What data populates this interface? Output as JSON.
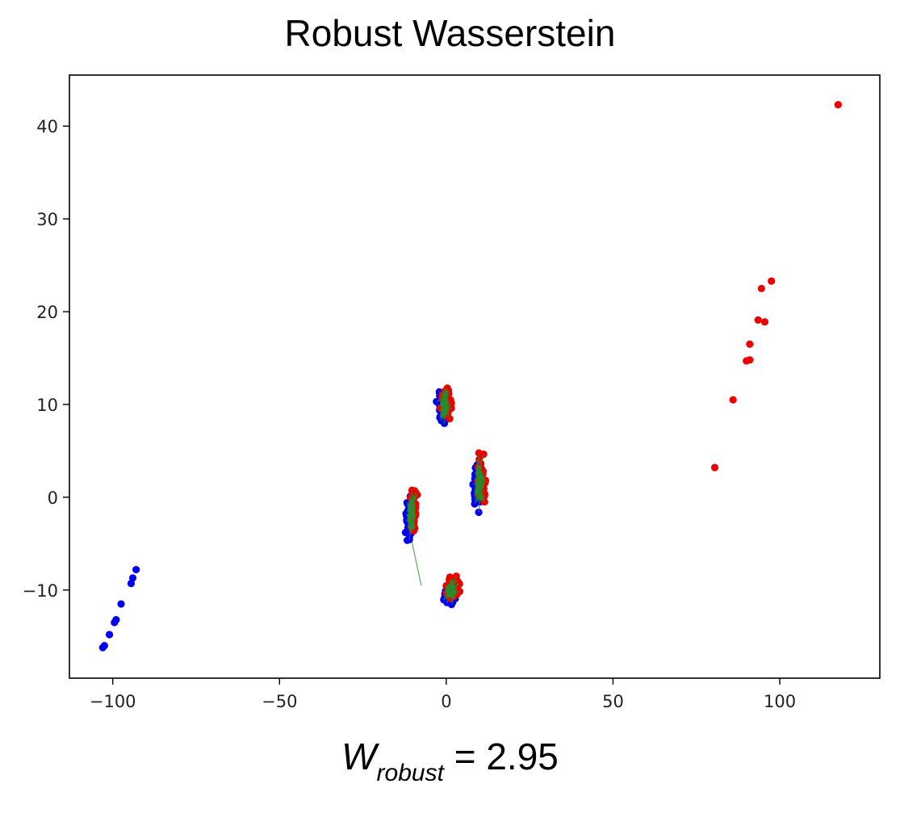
{
  "chart_data": {
    "type": "scatter",
    "title": "Robust Wasserstein",
    "xlim": [
      -113,
      130
    ],
    "ylim": [
      -19.5,
      45.5
    ],
    "xticks": [
      -100,
      -50,
      0,
      50,
      100
    ],
    "yticks": [
      -10,
      0,
      10,
      20,
      30,
      40
    ],
    "xtick_labels": [
      "−100",
      "−50",
      "0",
      "50",
      "100"
    ],
    "ytick_labels": [
      "−10",
      "0",
      "10",
      "20",
      "30",
      "40"
    ],
    "grid": false,
    "colors": {
      "source": "#0000ee",
      "target": "#ee0000",
      "transport": "#2a8a2a"
    },
    "clusters": [
      {
        "center": [
          -0.5,
          10.0
        ],
        "sx": 1.0,
        "sy": 1.1
      },
      {
        "center": [
          10.0,
          1.5
        ],
        "sx": 0.8,
        "sy": 1.6
      },
      {
        "center": [
          -10.5,
          -2.0
        ],
        "sx": 0.7,
        "sy": 1.7
      },
      {
        "center": [
          1.5,
          -10.0
        ],
        "sx": 1.2,
        "sy": 0.8
      }
    ],
    "source_outliers": [
      [
        -103.0,
        -16.2
      ],
      [
        -102.5,
        -16.0
      ],
      [
        -101.0,
        -14.8
      ],
      [
        -99.5,
        -13.5
      ],
      [
        -99.0,
        -13.2
      ],
      [
        -97.5,
        -11.5
      ],
      [
        -94.5,
        -9.3
      ],
      [
        -94.0,
        -8.7
      ],
      [
        -93.0,
        -7.8
      ]
    ],
    "target_outliers": [
      [
        80.5,
        3.2
      ],
      [
        86.0,
        10.5
      ],
      [
        90.0,
        14.7
      ],
      [
        91.0,
        14.8
      ],
      [
        91.0,
        16.5
      ],
      [
        93.5,
        19.1
      ],
      [
        95.5,
        18.9
      ],
      [
        94.5,
        22.5
      ],
      [
        97.5,
        23.3
      ],
      [
        117.5,
        42.3
      ]
    ],
    "transport_links": [
      [
        [
          -10.5,
          -4.5
        ],
        [
          -7.5,
          -9.5
        ]
      ],
      [
        [
          -1.0,
          8.5
        ],
        [
          -0.5,
          9.5
        ]
      ]
    ]
  },
  "formula": {
    "symbol": "W",
    "subscript": "robust",
    "value": "= 2.95"
  }
}
